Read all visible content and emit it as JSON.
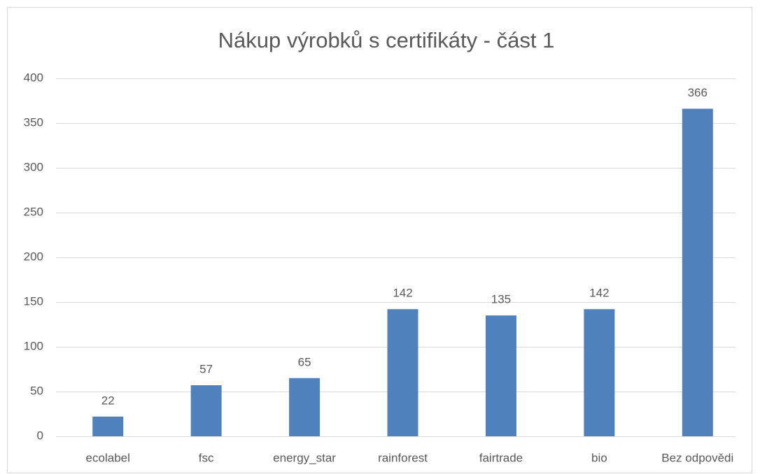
{
  "chart_data": {
    "type": "bar",
    "title": "Nákup výrobků s certifikáty - část 1",
    "categories": [
      "ecolabel",
      "fsc",
      "energy_star",
      "rainforest",
      "fairtrade",
      "bio",
      "Bez odpovědi"
    ],
    "values": [
      22,
      57,
      65,
      142,
      135,
      142,
      366
    ],
    "color": "#4f81bd",
    "ylim": [
      0,
      400
    ],
    "yticks": [
      0,
      50,
      100,
      150,
      200,
      250,
      300,
      350,
      400
    ],
    "grid": true
  }
}
